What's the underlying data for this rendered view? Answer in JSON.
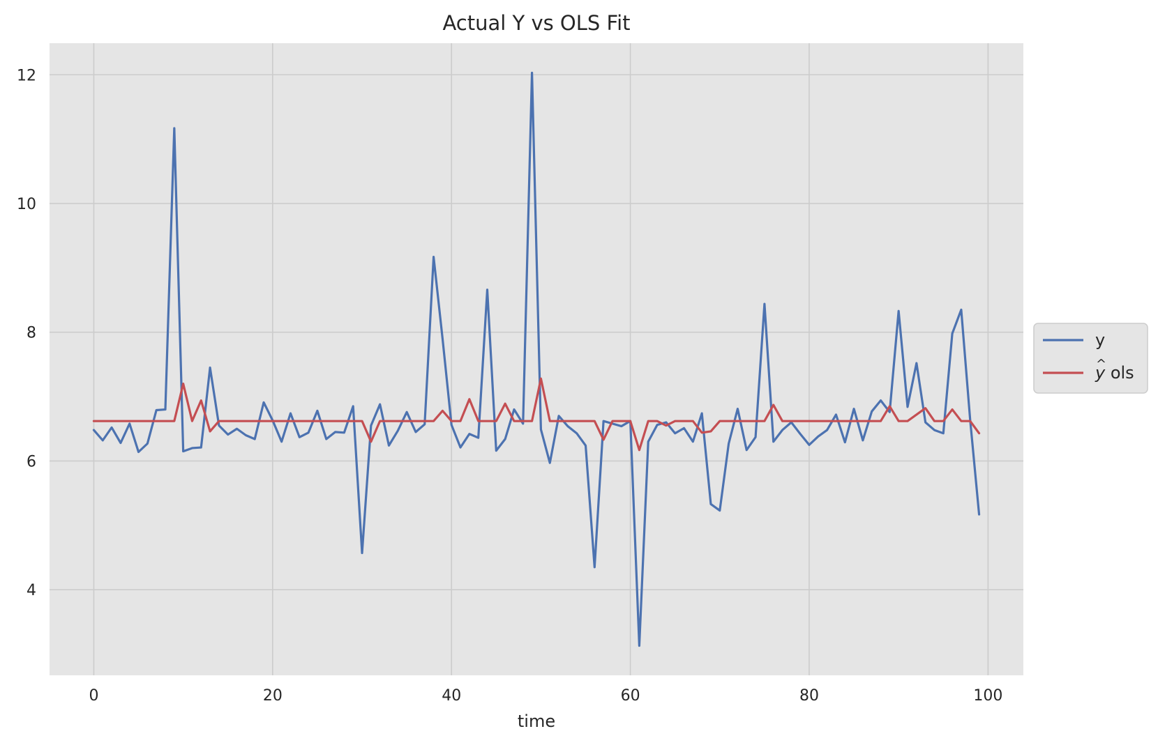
{
  "chart_data": {
    "type": "line",
    "title": "Actual Y vs OLS Fit",
    "xlabel": "time",
    "ylabel": "",
    "xlim": [
      -4.95,
      103.95
    ],
    "ylim": [
      2.67,
      12.49
    ],
    "xticks": [
      0,
      20,
      40,
      60,
      80,
      100
    ],
    "yticks": [
      4,
      6,
      8,
      10,
      12
    ],
    "grid": true,
    "legend_position": "center-right-outside",
    "colors": {
      "background": "#e5e5e5",
      "grid": "#cccccc",
      "y": "#4c72b0",
      "yhat": "#c44e52"
    },
    "x": [
      0,
      1,
      2,
      3,
      4,
      5,
      6,
      7,
      8,
      9,
      10,
      11,
      12,
      13,
      14,
      15,
      16,
      17,
      18,
      19,
      20,
      21,
      22,
      23,
      24,
      25,
      26,
      27,
      28,
      29,
      30,
      31,
      32,
      33,
      34,
      35,
      36,
      37,
      38,
      39,
      40,
      41,
      42,
      43,
      44,
      45,
      46,
      47,
      48,
      49,
      50,
      51,
      52,
      53,
      54,
      55,
      56,
      57,
      58,
      59,
      60,
      61,
      62,
      63,
      64,
      65,
      66,
      67,
      68,
      69,
      70,
      71,
      72,
      73,
      74,
      75,
      76,
      77,
      78,
      79,
      80,
      81,
      82,
      83,
      84,
      85,
      86,
      87,
      88,
      89,
      90,
      91,
      92,
      93,
      94,
      95,
      96,
      97,
      98,
      99
    ],
    "series": [
      {
        "name": "y",
        "values": [
          6.48,
          6.32,
          6.52,
          6.28,
          6.58,
          6.14,
          6.27,
          6.79,
          6.8,
          11.17,
          6.15,
          6.2,
          6.21,
          7.45,
          6.55,
          6.41,
          6.5,
          6.4,
          6.34,
          6.91,
          6.63,
          6.3,
          6.74,
          6.37,
          6.44,
          6.78,
          6.34,
          6.45,
          6.44,
          6.85,
          4.57,
          6.55,
          6.88,
          6.24,
          6.47,
          6.76,
          6.45,
          6.57,
          9.17,
          7.9,
          6.56,
          6.21,
          6.42,
          6.36,
          8.66,
          6.16,
          6.34,
          6.8,
          6.58,
          12.03,
          6.49,
          5.97,
          6.7,
          6.54,
          6.43,
          6.24,
          4.35,
          6.62,
          6.58,
          6.54,
          6.62,
          3.13,
          6.3,
          6.56,
          6.6,
          6.43,
          6.51,
          6.3,
          6.74,
          5.33,
          5.23,
          6.27,
          6.81,
          6.17,
          6.37,
          8.44,
          6.3,
          6.48,
          6.6,
          6.42,
          6.25,
          6.38,
          6.48,
          6.72,
          6.29,
          6.81,
          6.32,
          6.77,
          6.94,
          6.76,
          8.33,
          6.84,
          7.52,
          6.6,
          6.48,
          6.43,
          7.98,
          8.35,
          6.64,
          5.17
        ]
      },
      {
        "name": "ŷ ols",
        "values": [
          6.62,
          6.62,
          6.62,
          6.62,
          6.62,
          6.62,
          6.62,
          6.62,
          6.62,
          6.62,
          7.2,
          6.62,
          6.94,
          6.46,
          6.62,
          6.62,
          6.62,
          6.62,
          6.62,
          6.62,
          6.62,
          6.62,
          6.62,
          6.62,
          6.62,
          6.62,
          6.62,
          6.62,
          6.62,
          6.62,
          6.62,
          6.3,
          6.62,
          6.62,
          6.62,
          6.62,
          6.62,
          6.62,
          6.62,
          6.78,
          6.62,
          6.62,
          6.96,
          6.62,
          6.62,
          6.62,
          6.89,
          6.62,
          6.62,
          6.62,
          7.28,
          6.62,
          6.62,
          6.62,
          6.62,
          6.62,
          6.62,
          6.33,
          6.62,
          6.62,
          6.62,
          6.17,
          6.62,
          6.62,
          6.55,
          6.62,
          6.62,
          6.62,
          6.44,
          6.46,
          6.62,
          6.62,
          6.62,
          6.62,
          6.62,
          6.62,
          6.87,
          6.62,
          6.62,
          6.62,
          6.62,
          6.62,
          6.62,
          6.62,
          6.62,
          6.62,
          6.62,
          6.62,
          6.62,
          6.85,
          6.62,
          6.62,
          6.72,
          6.82,
          6.62,
          6.62,
          6.8,
          6.62,
          6.62,
          6.43
        ]
      }
    ],
    "legend": [
      {
        "label": "y",
        "series": 0
      },
      {
        "label_pre": "y",
        "label_post": " ols",
        "series": 1
      }
    ]
  }
}
